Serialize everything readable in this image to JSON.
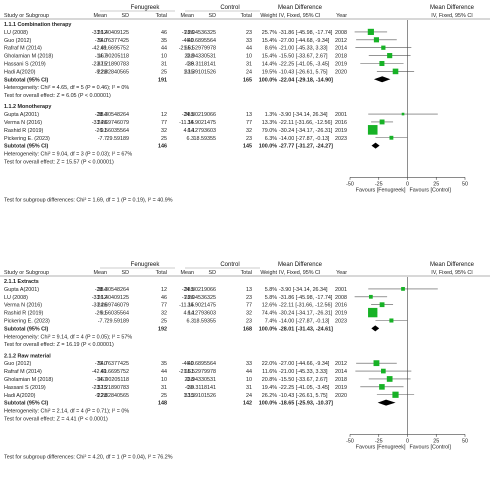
{
  "chart_data": [
    {
      "type": "forest",
      "header": {
        "group1": "Fenugreek",
        "group2": "Control",
        "md1": "Mean Difference",
        "md1_sub": "IV, Fixed, 95% CI",
        "md2": "Mean Difference",
        "md2_sub": "IV, Fixed, 95% CI",
        "col_study": "Study or Subgroup",
        "col_mean": "Mean",
        "col_sd": "SD",
        "col_total": "Total",
        "col_weight": "Weight",
        "col_year": "Year"
      },
      "xlim": [
        -50,
        50
      ],
      "ticks": [
        "-50",
        "-25",
        "0",
        "25",
        "50"
      ],
      "favours_left": "Favours [Fenugreek]",
      "favours_right": "Favours [Control]",
      "overall_test": "Test for subgroup differences: Chi² = 1.69, df = 1 (P = 0.19), I² = 40.9%",
      "subgroups": [
        {
          "title": "1.1.1 Combination therapy",
          "studies": [
            {
              "study": "LU (2008)",
              "m1": "-33.12",
              "sd1": "26.40409125",
              "n1": "46",
              "m2": "-1.26",
              "sd2": "28.04536325",
              "n2": "23",
              "weight": "25.7%",
              "ci": "-31.86 [-45.98, -17.74]",
              "year": "2008",
              "md": -31.86,
              "lo": -45.98,
              "hi": -17.74,
              "w": 25.7
            },
            {
              "study": "Guo (2012)",
              "m1": "-73.0",
              "sd1": "34.76377425",
              "n1": "35",
              "m2": "-46.0",
              "sd2": "40.6895564",
              "n2": "33",
              "weight": "15.4%",
              "ci": "-27.00 [-44.68, -9.34]",
              "year": "2012",
              "md": -27.0,
              "lo": -44.68,
              "hi": -9.34,
              "w": 15.4
            },
            {
              "study": "Rafraf M (2014)",
              "m1": "-42.61",
              "sd1": "49.6695752",
              "n1": "44",
              "m2": "-21.61",
              "sd2": "65.52979978",
              "n2": "44",
              "weight": "8.6%",
              "ci": "-21.00 [-45.33, 3.33]",
              "year": "2014",
              "md": -21.0,
              "lo": -45.33,
              "hi": 3.33,
              "w": 8.6
            },
            {
              "study": "Gholamian M (2018)",
              "m1": "-14.7",
              "sd1": "16.90205118",
              "n1": "10",
              "m2": "0.8",
              "sd2": "23.94330531",
              "n2": "10",
              "weight": "15.4%",
              "ci": "-15.50 [-33.67, 2.67]",
              "year": "2018",
              "md": -15.5,
              "lo": -33.67,
              "hi": 2.67,
              "w": 15.4
            },
            {
              "study": "Hassani S (2019)",
              "m1": "-23.15",
              "sd1": "37.21890783",
              "n1": "31",
              "m2": "-0.9",
              "sd2": "38.3118141",
              "n2": "31",
              "weight": "14.4%",
              "ci": "-22.25 [-41.05, -3.45]",
              "year": "2019",
              "md": -22.25,
              "lo": -41.05,
              "hi": -3.45,
              "w": 14.4
            },
            {
              "study": "Hadi A(2020)",
              "m1": "-9.28",
              "sd1": "22.82840565",
              "n1": "25",
              "m2": "1.15",
              "sd2": "33.39101526",
              "n2": "24",
              "weight": "19.5%",
              "ci": "-10.43 [-26.61, 5.75]",
              "year": "2020",
              "md": -10.43,
              "lo": -26.61,
              "hi": 5.75,
              "w": 19.5
            }
          ],
          "subtotal": {
            "label": "Subtotal (95% CI)",
            "n1": "191",
            "n2": "165",
            "weight": "100.0%",
            "ci": "-22.04 [-29.18, -14.90]",
            "md": -22.04,
            "lo": -29.18,
            "hi": -14.9
          },
          "heterogeneity": "Heterogeneity: Chi² = 4.65, df = 5 (P = 0.46); I² = 0%",
          "overall_effect": "Test for overall effect: Z = 6.05 (P < 0.00001)"
        },
        {
          "title": "1.1.2 Monotherapy",
          "studies": [
            {
              "study": "Gupta A(2001)",
              "m1": "-28.4",
              "sd1": "38.30548264",
              "n1": "12",
              "m2": "-24.5",
              "sd2": "38.80219066",
              "n2": "13",
              "weight": "1.3%",
              "ci": "-3.90 [-34.14, 26.34]",
              "year": "2001",
              "md": -3.9,
              "lo": -34.14,
              "hi": 26.34,
              "w": 1.3
            },
            {
              "study": "Verma N (2016)",
              "m1": "-33.26",
              "sd1": "24.69746079",
              "n1": "77",
              "m2": "-11.15",
              "sd2": "34.9021475",
              "n2": "77",
              "weight": "13.3%",
              "ci": "-22.11 [-31.66, -12.56]",
              "year": "2016",
              "md": -22.11,
              "lo": -31.66,
              "hi": -12.56,
              "w": 13.3
            },
            {
              "study": "Rashid R (2019)",
              "m1": "-26.1",
              "sd1": "9.56035564",
              "n1": "32",
              "m2": "4.14",
              "sd2": "6.12793603",
              "n2": "32",
              "weight": "79.0%",
              "ci": "-30.24 [-34.17, -26.31]",
              "year": "2019",
              "md": -30.24,
              "lo": -34.17,
              "hi": -26.31,
              "w": 79.0
            },
            {
              "study": "Pickering E. (2023)",
              "m1": "-7.7",
              "sd1": "29.59189",
              "n1": "25",
              "m2": "6.3",
              "sd2": "18.59355",
              "n2": "23",
              "weight": "6.3%",
              "ci": "-14.00 [-27.87, -0.13]",
              "year": "2023",
              "md": -14.0,
              "lo": -27.87,
              "hi": -0.13,
              "w": 6.3
            }
          ],
          "subtotal": {
            "label": "Subtotal (95% CI)",
            "n1": "146",
            "n2": "145",
            "weight": "100.0%",
            "ci": "-27.77 [-31.27, -24.27]",
            "md": -27.77,
            "lo": -31.27,
            "hi": -24.27
          },
          "heterogeneity": "Heterogeneity: Chi² = 9.04, df = 3 (P = 0.03); I² = 67%",
          "overall_effect": "Test for overall effect: Z = 15.57 (P < 0.00001)"
        }
      ]
    },
    {
      "type": "forest",
      "header": {
        "group1": "Fenugreek",
        "group2": "Control",
        "md1": "Mean Difference",
        "md1_sub": "IV, Fixed, 95% CI",
        "md2": "Mean Difference",
        "md2_sub": "IV, Fixed, 95% CI",
        "col_study": "Study or Subgroup",
        "col_mean": "Mean",
        "col_sd": "SD",
        "col_total": "Total",
        "col_weight": "Weight",
        "col_year": "Year"
      },
      "xlim": [
        -50,
        50
      ],
      "ticks": [
        "-50",
        "-25",
        "0",
        "25",
        "50"
      ],
      "favours_left": "Favours [Fenugreek]",
      "favours_right": "Favours [Control]",
      "overall_test": "Test for subgroup differences: Chi² = 4.20, df = 1 (P = 0.04), I² = 76.2%",
      "subgroups": [
        {
          "title": "2.1.1 Extracts",
          "studies": [
            {
              "study": "Gupta A(2001)",
              "m1": "-28.4",
              "sd1": "38.30548264",
              "n1": "12",
              "m2": "-24.5",
              "sd2": "38.80219066",
              "n2": "13",
              "weight": "5.8%",
              "ci": "-3.90 [-34.14, 26.34]",
              "year": "2001",
              "md": -3.9,
              "lo": -34.14,
              "hi": 26.34,
              "w": 5.8
            },
            {
              "study": "LU (2008)",
              "m1": "-33.12",
              "sd1": "26.40409125",
              "n1": "46",
              "m2": "-1.26",
              "sd2": "28.04536325",
              "n2": "23",
              "weight": "5.8%",
              "ci": "-31.86 [-45.98, -17.74]",
              "year": "2008",
              "md": -31.86,
              "lo": -45.98,
              "hi": -17.74,
              "w": 5.8
            },
            {
              "study": "Verma N (2016)",
              "m1": "-33.26",
              "sd1": "24.69746079",
              "n1": "77",
              "m2": "-11.15",
              "sd2": "34.9021475",
              "n2": "77",
              "weight": "12.6%",
              "ci": "-22.11 [-31.66, -12.56]",
              "year": "2016",
              "md": -22.11,
              "lo": -31.66,
              "hi": -12.56,
              "w": 12.6
            },
            {
              "study": "Rashid R (2019)",
              "m1": "-26.1",
              "sd1": "9.56035564",
              "n1": "32",
              "m2": "4.14",
              "sd2": "6.12793603",
              "n2": "32",
              "weight": "74.4%",
              "ci": "-30.24 [-34.17, -26.31]",
              "year": "2019",
              "md": -30.24,
              "lo": -34.17,
              "hi": -26.31,
              "w": 74.4
            },
            {
              "study": "Pickering E. (2023)",
              "m1": "-7.7",
              "sd1": "29.59189",
              "n1": "25",
              "m2": "6.3",
              "sd2": "18.59355",
              "n2": "23",
              "weight": "7.4%",
              "ci": "-14.00 [-27.87, -0.13]",
              "year": "2023",
              "md": -14.0,
              "lo": -27.87,
              "hi": -0.13,
              "w": 7.4
            }
          ],
          "subtotal": {
            "label": "Subtotal (95% CI)",
            "n1": "192",
            "n2": "168",
            "weight": "100.0%",
            "ci": "-28.01 [-31.43, -24.61]",
            "md": -28.01,
            "lo": -31.43,
            "hi": -24.61
          },
          "heterogeneity": "Heterogeneity: Chi² = 9.14, df = 4 (P = 0.05); I² = 57%",
          "overall_effect": "Test for overall effect: Z = 16.19 (P < 0.00001)"
        },
        {
          "title": "2.1.2 Raw material",
          "studies": [
            {
              "study": "Guo (2012)",
              "m1": "-73.0",
              "sd1": "34.76377425",
              "n1": "35",
              "m2": "-46.0",
              "sd2": "40.6895564",
              "n2": "33",
              "weight": "22.0%",
              "ci": "-27.00 [-44.66, -9.34]",
              "year": "2012",
              "md": -27.0,
              "lo": -44.66,
              "hi": -9.34,
              "w": 22.0
            },
            {
              "study": "Rafraf M (2014)",
              "m1": "-42.61",
              "sd1": "49.6695752",
              "n1": "44",
              "m2": "-21.61",
              "sd2": "65.52979978",
              "n2": "44",
              "weight": "11.6%",
              "ci": "-21.00 [-45.33, 3.33]",
              "year": "2014",
              "md": -21.0,
              "lo": -45.33,
              "hi": 3.33,
              "w": 11.6
            },
            {
              "study": "Gholamian M (2018)",
              "m1": "-14.7",
              "sd1": "16.90205118",
              "n1": "10",
              "m2": "0.8",
              "sd2": "23.94330531",
              "n2": "10",
              "weight": "20.8%",
              "ci": "-15.50 [-33.67, 2.67]",
              "year": "2018",
              "md": -15.5,
              "lo": -33.67,
              "hi": 2.67,
              "w": 20.8
            },
            {
              "study": "Hassani S (2019)",
              "m1": "-23.15",
              "sd1": "37.21890783",
              "n1": "31",
              "m2": "-0.9",
              "sd2": "38.3118141",
              "n2": "31",
              "weight": "19.4%",
              "ci": "-22.25 [-41.05, -3.45]",
              "year": "2019",
              "md": -22.25,
              "lo": -41.05,
              "hi": -3.45,
              "w": 19.4
            },
            {
              "study": "Hadi A(2020)",
              "m1": "-9.28",
              "sd1": "22.82840565",
              "n1": "25",
              "m2": "1.15",
              "sd2": "33.39101526",
              "n2": "24",
              "weight": "26.2%",
              "ci": "-10.43 [-26.61, 5.75]",
              "year": "2020",
              "md": -10.43,
              "lo": -26.61,
              "hi": 5.75,
              "w": 26.2
            }
          ],
          "subtotal": {
            "label": "Subtotal (95% CI)",
            "n1": "148",
            "n2": "142",
            "weight": "100.0%",
            "ci": "-18.65 [-25.93, -10.37]",
            "md": -18.65,
            "lo": -25.93,
            "hi": -10.37
          },
          "heterogeneity": "Heterogeneity: Chi² = 2.14, df = 4 (P = 0.71); I² = 0%",
          "overall_effect": "Test for overall effect: Z = 4.41 (P < 0.0001)"
        }
      ]
    }
  ],
  "colors": {
    "marker": "#17b226",
    "diamond": "#000000",
    "line": "#555555",
    "header_rule": "#999999"
  }
}
